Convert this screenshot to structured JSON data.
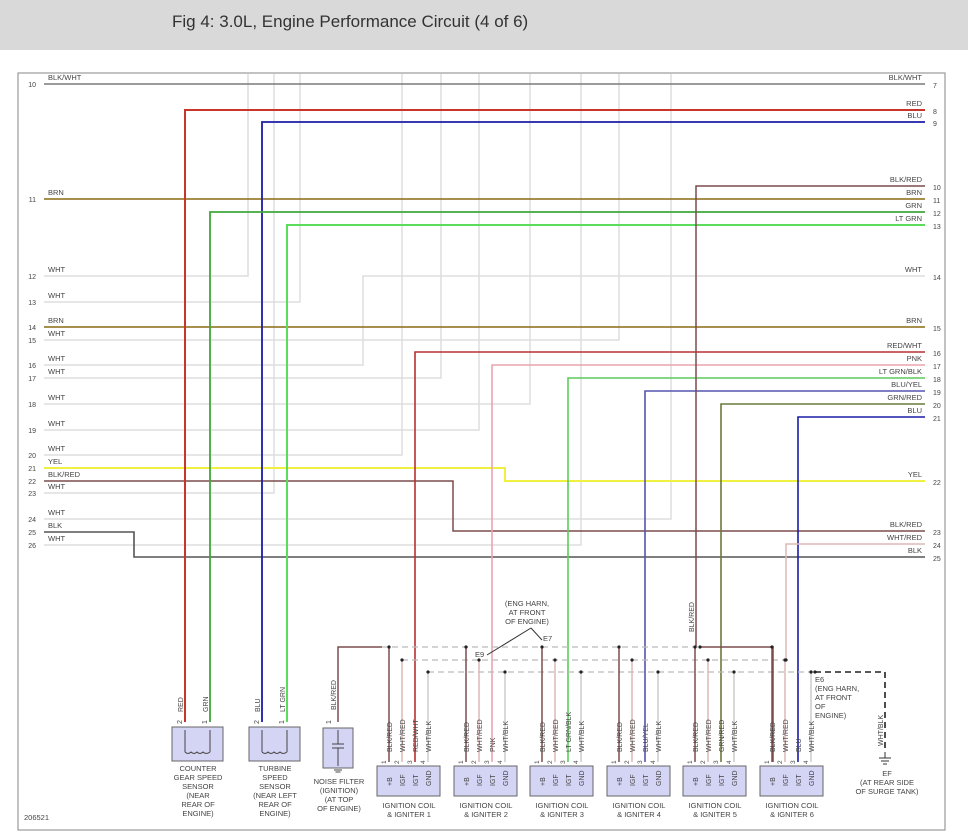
{
  "header": {
    "title": "Fig 4: 3.0L, Engine Performance Circuit (4 of 6)"
  },
  "diagram_id": "206521",
  "wire_colors": {
    "BLK/WHT": "#7a7a7a",
    "RED": "#c8352b",
    "BLU": "#1c1ca8",
    "BRN": "#8c6a14",
    "GRN": "#3ea83a",
    "LT GRN": "#5cdc5c",
    "WHT": "#dddddd",
    "YEL": "#f0f040",
    "BLK/RED": "#7c4c4c",
    "BLK": "#555555",
    "RED/WHT": "#b83030",
    "PNK": "#eca4ae",
    "LT GRN/BLK": "#5ccc5c",
    "BLU/YEL": "#5555b0",
    "GRN/RED": "#6c7a3c",
    "WHT/RED": "#ddb8b8",
    "WHT/BLK": "#cccccc"
  },
  "left_pins": [
    {
      "num": "10",
      "wire": "BLK/WHT"
    },
    {
      "num": "11",
      "wire": "BRN"
    },
    {
      "num": "12",
      "wire": "WHT"
    },
    {
      "num": "13",
      "wire": "WHT"
    },
    {
      "num": "14",
      "wire": "BRN"
    },
    {
      "num": "15",
      "wire": "WHT"
    },
    {
      "num": "16",
      "wire": "WHT"
    },
    {
      "num": "17",
      "wire": "WHT"
    },
    {
      "num": "18",
      "wire": "WHT"
    },
    {
      "num": "19",
      "wire": "WHT"
    },
    {
      "num": "20",
      "wire": "WHT"
    },
    {
      "num": "21",
      "wire": "YEL"
    },
    {
      "num": "22",
      "wire": "BLK/RED"
    },
    {
      "num": "23",
      "wire": "WHT"
    },
    {
      "num": "24",
      "wire": "WHT"
    },
    {
      "num": "25",
      "wire": "BLK"
    },
    {
      "num": "26",
      "wire": "WHT"
    }
  ],
  "right_pins": [
    {
      "num": "7",
      "wire": "BLK/WHT"
    },
    {
      "num": "8",
      "wire": "RED"
    },
    {
      "num": "9",
      "wire": "BLU"
    },
    {
      "num": "10",
      "wire": "BLK/RED"
    },
    {
      "num": "11",
      "wire": "BRN"
    },
    {
      "num": "12",
      "wire": "GRN"
    },
    {
      "num": "13",
      "wire": "LT GRN"
    },
    {
      "num": "14",
      "wire": "WHT"
    },
    {
      "num": "15",
      "wire": "BRN"
    },
    {
      "num": "16",
      "wire": "RED/WHT"
    },
    {
      "num": "17",
      "wire": "PNK"
    },
    {
      "num": "18",
      "wire": "LT GRN/BLK"
    },
    {
      "num": "19",
      "wire": "BLU/YEL"
    },
    {
      "num": "20",
      "wire": "GRN/RED"
    },
    {
      "num": "21",
      "wire": "BLU"
    },
    {
      "num": "22",
      "wire": "YEL"
    },
    {
      "num": "23",
      "wire": "BLK/RED"
    },
    {
      "num": "24",
      "wire": "WHT/RED"
    },
    {
      "num": "25",
      "wire": "BLK"
    }
  ],
  "sensors": [
    {
      "name": [
        "COUNTER",
        "GEAR SPEED",
        "SENSOR",
        "(NEAR",
        "REAR OF",
        "ENGINE)"
      ],
      "pins": [
        {
          "num": "2",
          "wire": "RED"
        },
        {
          "num": "1",
          "wire": "GRN"
        }
      ]
    },
    {
      "name": [
        "TURBINE",
        "SPEED",
        "SENSOR",
        "(NEAR LEFT",
        "REAR OF",
        "ENGINE)"
      ],
      "pins": [
        {
          "num": "2",
          "wire": "BLU"
        },
        {
          "num": "1",
          "wire": "LT GRN"
        }
      ]
    }
  ],
  "noise_filter": {
    "name": [
      "NOISE FILTER",
      "(IGNITION)",
      "(AT TOP",
      "OF ENGINE)"
    ],
    "pin": "1",
    "wire": "BLK/RED"
  },
  "coils": [
    {
      "name": [
        "IGNITION COIL",
        "& IGNITER 1"
      ],
      "wires": [
        "BLK/RED",
        "WHT/RED",
        "RED/WHT",
        "WHT/BLK"
      ]
    },
    {
      "name": [
        "IGNITION COIL",
        "& IGNITER 2"
      ],
      "wires": [
        "BLK/RED",
        "WHT/RED",
        "PNK",
        "WHT/BLK"
      ]
    },
    {
      "name": [
        "IGNITION COIL",
        "& IGNITER 3"
      ],
      "wires": [
        "BLK/RED",
        "WHT/RED",
        "LT GRN/BLK",
        "WHT/BLK"
      ]
    },
    {
      "name": [
        "IGNITION COIL",
        "& IGNITER 4"
      ],
      "wires": [
        "BLK/RED",
        "WHT/RED",
        "BLU/YEL",
        "WHT/BLK"
      ]
    },
    {
      "name": [
        "IGNITION COIL",
        "& IGNITER 5"
      ],
      "wires": [
        "BLK/RED",
        "WHT/RED",
        "GRN/RED",
        "WHT/BLK"
      ]
    },
    {
      "name": [
        "IGNITION COIL",
        "& IGNITER 6"
      ],
      "wires": [
        "BLK/RED",
        "WHT/RED",
        "BLU",
        "WHT/BLK"
      ]
    }
  ],
  "coil_terminals": [
    "+B",
    "IGF",
    "IGT",
    "GND"
  ],
  "coil_pin_nums": [
    "1",
    "2",
    "3",
    "4"
  ],
  "splices": {
    "e7": "E7",
    "e9": "E9",
    "e7_e9_note": [
      "(ENG HARN,",
      "AT FRONT",
      "OF ENGINE)"
    ],
    "e6": [
      "E6",
      "(ENG HARN,",
      "AT FRONT",
      "OF",
      "ENGINE)"
    ]
  },
  "splice_labels": {
    "blk_red_drop": "BLK/RED"
  },
  "ground": {
    "wire": "WHT/BLK",
    "name": [
      "EF",
      "(AT REAR SIDE",
      "OF SURGE TANK)"
    ]
  }
}
